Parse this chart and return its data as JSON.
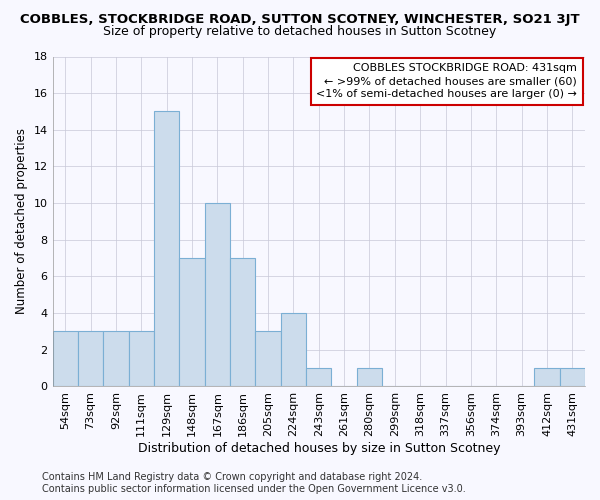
{
  "title": "COBBLES, STOCKBRIDGE ROAD, SUTTON SCOTNEY, WINCHESTER, SO21 3JT",
  "subtitle": "Size of property relative to detached houses in Sutton Scotney",
  "xlabel": "Distribution of detached houses by size in Sutton Scotney",
  "ylabel": "Number of detached properties",
  "categories": [
    "54sqm",
    "73sqm",
    "92sqm",
    "111sqm",
    "129sqm",
    "148sqm",
    "167sqm",
    "186sqm",
    "205sqm",
    "224sqm",
    "243sqm",
    "261sqm",
    "280sqm",
    "299sqm",
    "318sqm",
    "337sqm",
    "356sqm",
    "374sqm",
    "393sqm",
    "412sqm",
    "431sqm"
  ],
  "values": [
    3,
    3,
    3,
    3,
    15,
    7,
    10,
    7,
    3,
    4,
    1,
    0,
    1,
    0,
    0,
    0,
    0,
    0,
    0,
    1,
    1
  ],
  "bar_color": "#ccdcec",
  "bar_edge_color": "#7bafd4",
  "ylim": [
    0,
    18
  ],
  "yticks": [
    0,
    2,
    4,
    6,
    8,
    10,
    12,
    14,
    16,
    18
  ],
  "grid_color": "#c8c8d8",
  "background_color": "#f8f8ff",
  "annotation_title": "COBBLES STOCKBRIDGE ROAD: 431sqm",
  "annotation_line2": "← >99% of detached houses are smaller (60)",
  "annotation_line3": "<1% of semi-detached houses are larger (0) →",
  "annotation_box_color": "#ffffff",
  "annotation_box_edge_color": "#cc0000",
  "footer": "Contains HM Land Registry data © Crown copyright and database right 2024.\nContains public sector information licensed under the Open Government Licence v3.0.",
  "title_fontsize": 9.5,
  "subtitle_fontsize": 9,
  "xlabel_fontsize": 9,
  "ylabel_fontsize": 8.5,
  "tick_fontsize": 8,
  "annotation_fontsize": 8,
  "footer_fontsize": 7
}
